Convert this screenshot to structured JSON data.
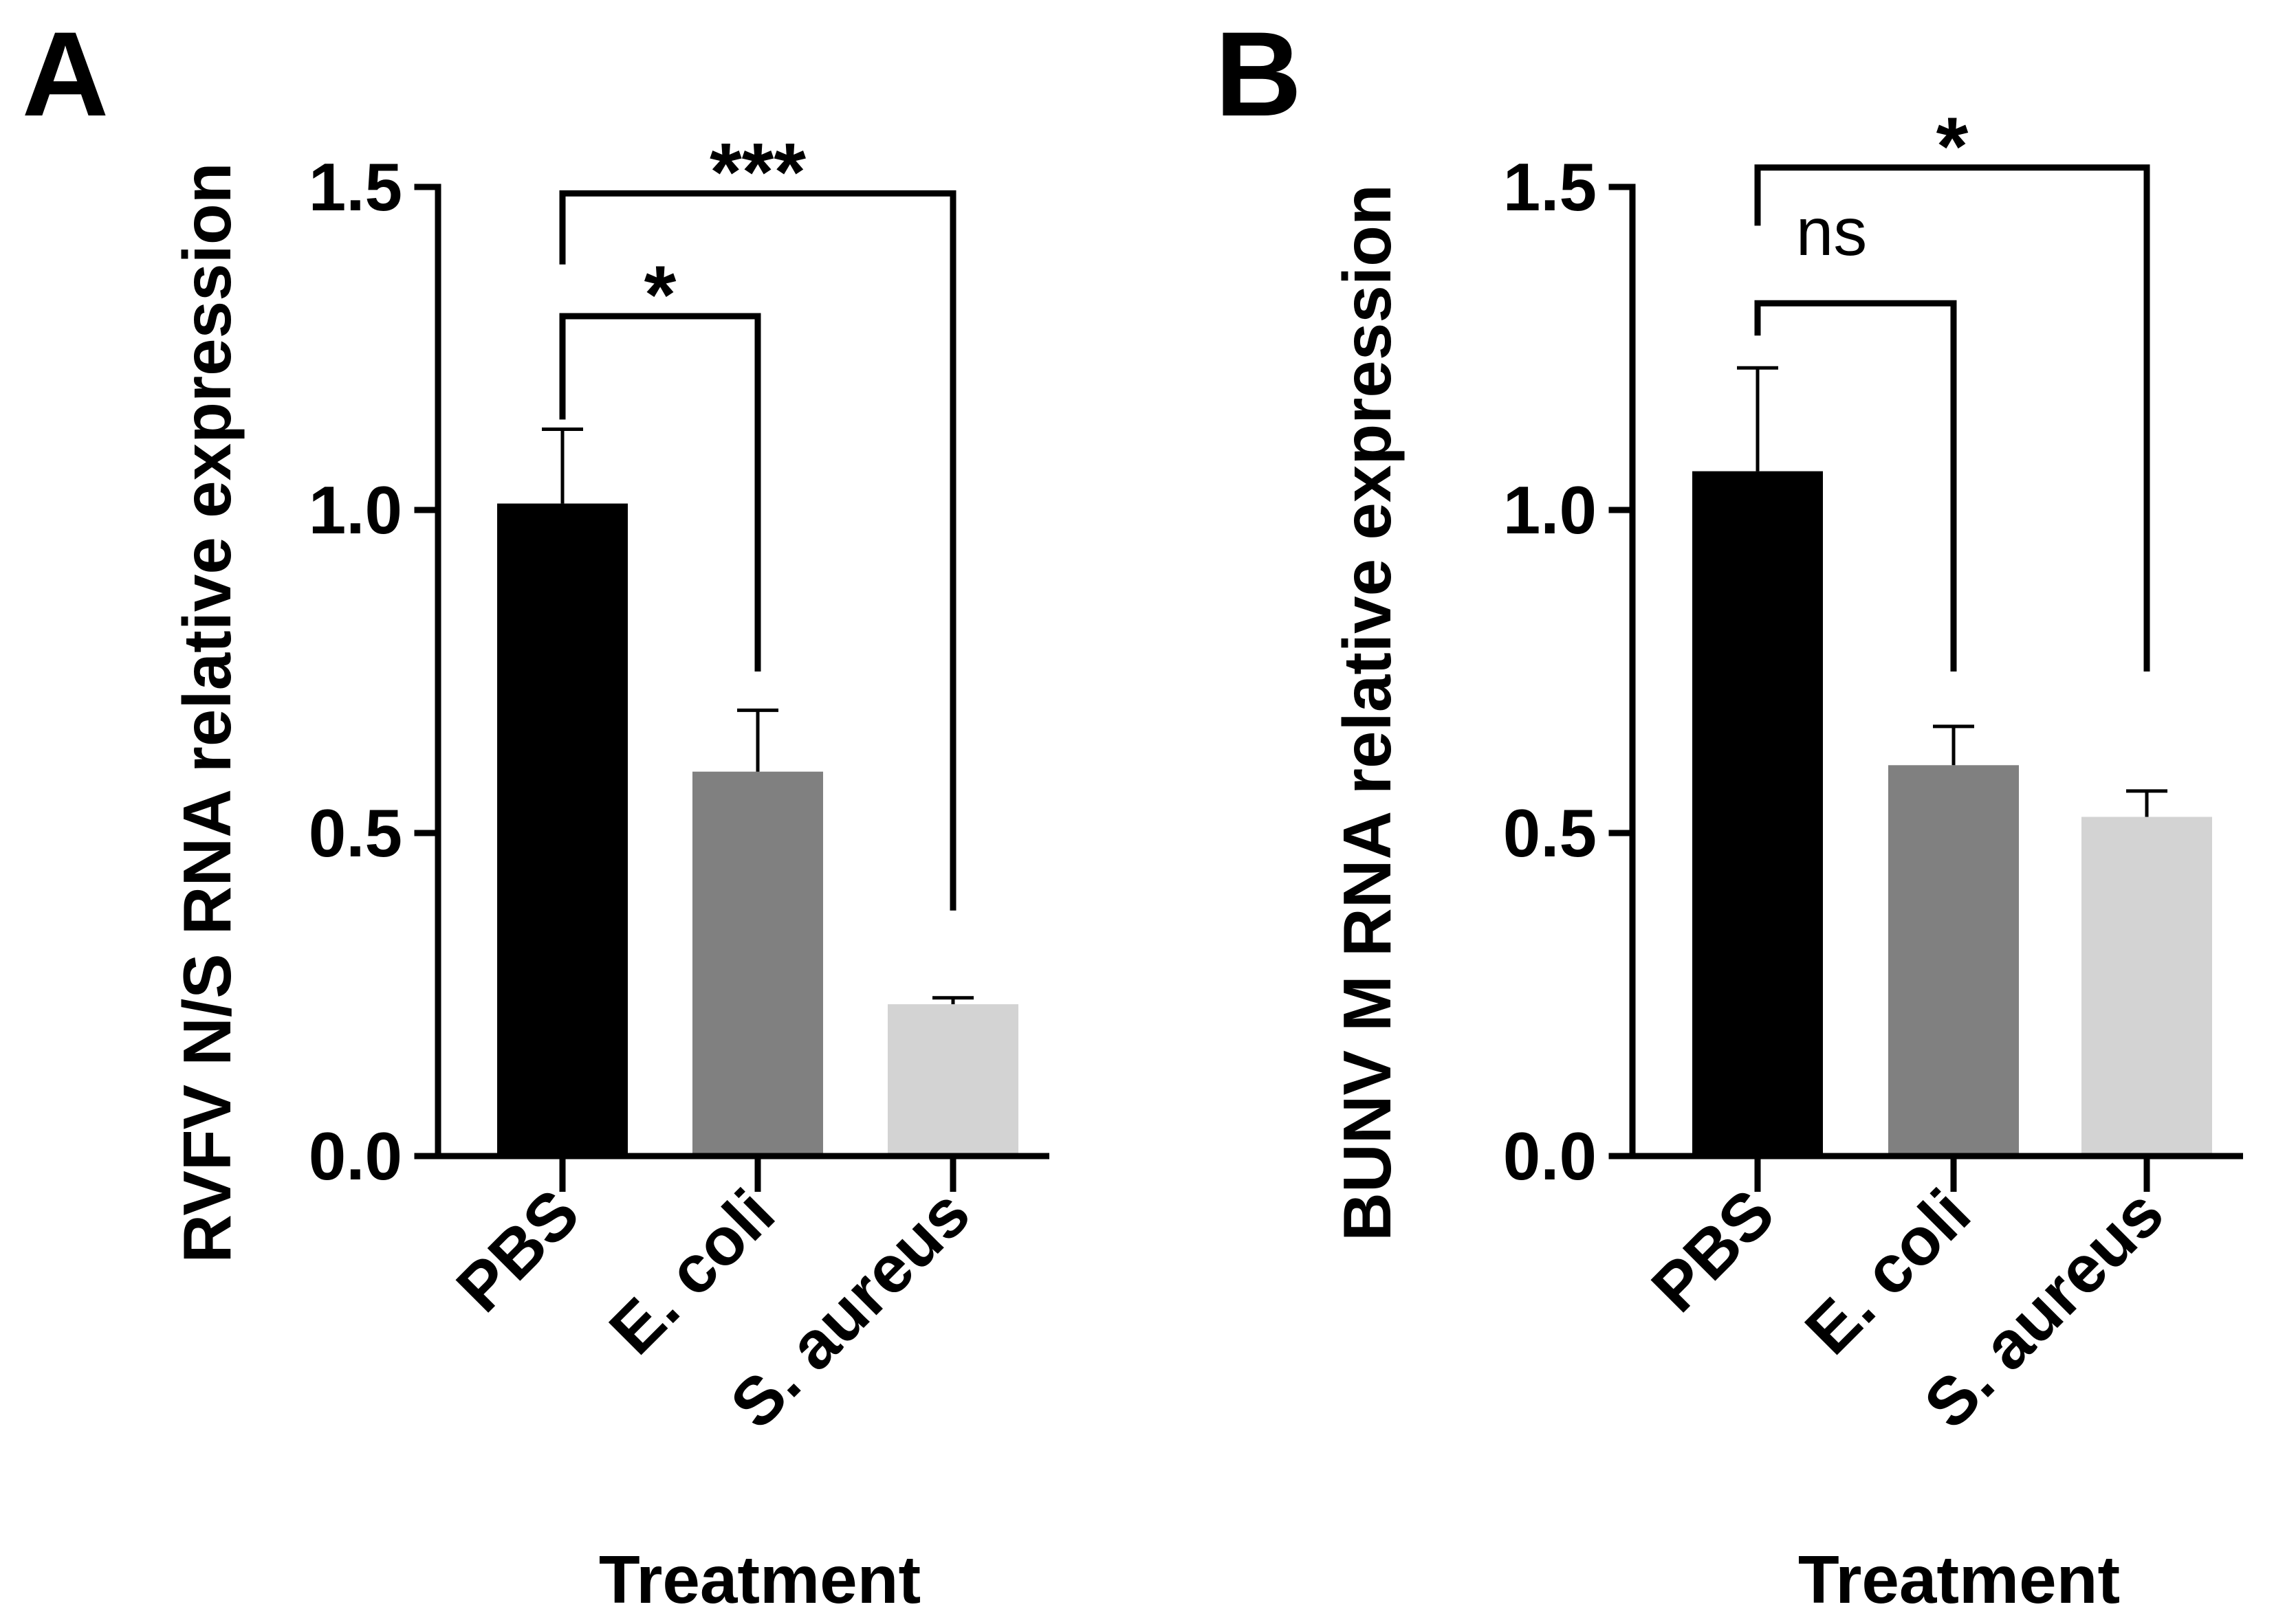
{
  "chart_data": [
    {
      "type": "bar",
      "panel_label": "A",
      "ylabel": "RVFV N/S RNA relative expression",
      "xlabel": "Treatment",
      "categories": [
        "PBS",
        "E. coli",
        "S. aureus"
      ],
      "values": [
        1.01,
        0.595,
        0.235
      ],
      "error_upper": [
        1.125,
        0.69,
        0.245
      ],
      "bar_colors": [
        "#000000",
        "#808080",
        "#d3d3d3"
      ],
      "ylim": [
        0,
        1.5
      ],
      "yticks": [
        "0.0",
        "0.5",
        "1.0",
        "1.5"
      ],
      "significance": [
        {
          "from": 0,
          "to": 1,
          "label": "*",
          "y_level": 1.3,
          "left_drop_to": 1.14,
          "right_drop_to": 0.75
        },
        {
          "from": 0,
          "to": 2,
          "label": "***",
          "y_level": 1.49,
          "left_drop_to": 1.38,
          "right_drop_to": 0.38
        }
      ]
    },
    {
      "type": "bar",
      "panel_label": "B",
      "ylabel": "BUNV M RNA relative expression",
      "xlabel": "Treatment",
      "categories": [
        "PBS",
        "E. coli",
        "S. aureus"
      ],
      "values": [
        1.06,
        0.605,
        0.525
      ],
      "error_upper": [
        1.22,
        0.665,
        0.565
      ],
      "bar_colors": [
        "#000000",
        "#808080",
        "#d3d3d3"
      ],
      "ylim": [
        0,
        1.5
      ],
      "yticks": [
        "0.0",
        "0.5",
        "1.0",
        "1.5"
      ],
      "significance": [
        {
          "from": 0,
          "to": 1,
          "label": "ns",
          "y_level": 1.32,
          "left_drop_to": 1.27,
          "right_drop_to": 0.75
        },
        {
          "from": 0,
          "to": 2,
          "label": "*",
          "y_level": 1.53,
          "left_drop_to": 1.44,
          "right_drop_to": 0.75
        }
      ]
    }
  ]
}
